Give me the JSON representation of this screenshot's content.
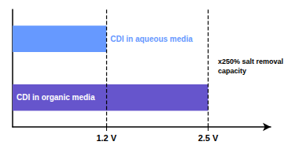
{
  "chart_data": {
    "type": "bar",
    "orientation": "horizontal",
    "categories": [
      null,
      null
    ],
    "series": [
      {
        "name": "CDI in organic media",
        "color": "#6655CC",
        "values": [
          2.5,
          null
        ]
      },
      {
        "name": "CDI in aqueous media",
        "color": "#6699FF",
        "values": [
          null,
          1.2
        ]
      }
    ],
    "xlim": [
      0,
      3.3
    ],
    "xticks": [
      {
        "value": 1.2,
        "label": "1.2 V"
      },
      {
        "value": 2.5,
        "label": "2.5 V"
      }
    ],
    "annotations": [
      "x250% salt removal\ncapacity"
    ],
    "grid": false,
    "tick_labels": "x"
  }
}
